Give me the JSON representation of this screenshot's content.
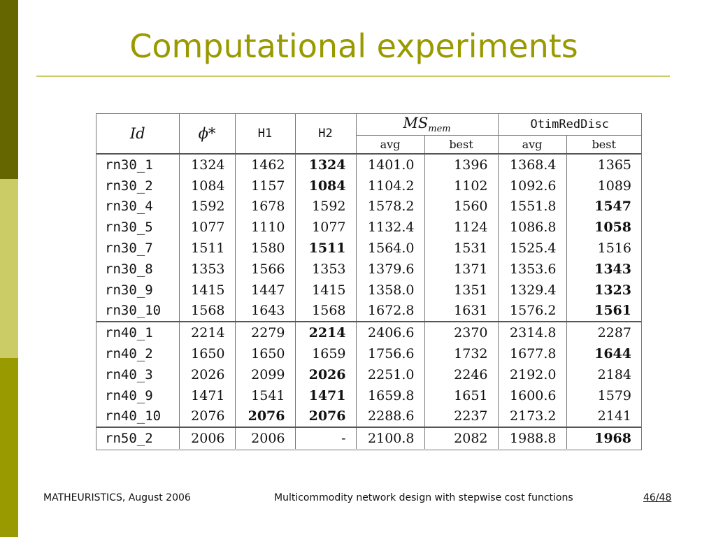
{
  "slide": {
    "title": "Computational experiments"
  },
  "table": {
    "headers": {
      "id": "Id",
      "phi": "ϕ*",
      "h1": "H1",
      "h2": "H2",
      "ms_main": "MS",
      "ms_sub": "mem",
      "otim": "OtimRedDisc",
      "avg": "avg",
      "best": "best"
    },
    "groups": [
      {
        "rows": [
          {
            "id": "rn30_1",
            "phi": "1324",
            "h1": "1462",
            "h2": "1324",
            "ms_avg": "1401.0",
            "ms_best": "1396",
            "ot_avg": "1368.4",
            "ot_best": "1365",
            "bold": [
              "h2"
            ]
          },
          {
            "id": "rn30_2",
            "phi": "1084",
            "h1": "1157",
            "h2": "1084",
            "ms_avg": "1104.2",
            "ms_best": "1102",
            "ot_avg": "1092.6",
            "ot_best": "1089",
            "bold": [
              "h2"
            ]
          },
          {
            "id": "rn30_4",
            "phi": "1592",
            "h1": "1678",
            "h2": "1592",
            "ms_avg": "1578.2",
            "ms_best": "1560",
            "ot_avg": "1551.8",
            "ot_best": "1547",
            "bold": [
              "ot_best"
            ]
          },
          {
            "id": "rn30_5",
            "phi": "1077",
            "h1": "1110",
            "h2": "1077",
            "ms_avg": "1132.4",
            "ms_best": "1124",
            "ot_avg": "1086.8",
            "ot_best": "1058",
            "bold": [
              "ot_best"
            ]
          },
          {
            "id": "rn30_7",
            "phi": "1511",
            "h1": "1580",
            "h2": "1511",
            "ms_avg": "1564.0",
            "ms_best": "1531",
            "ot_avg": "1525.4",
            "ot_best": "1516",
            "bold": [
              "h2"
            ]
          },
          {
            "id": "rn30_8",
            "phi": "1353",
            "h1": "1566",
            "h2": "1353",
            "ms_avg": "1379.6",
            "ms_best": "1371",
            "ot_avg": "1353.6",
            "ot_best": "1343",
            "bold": [
              "ot_best"
            ]
          },
          {
            "id": "rn30_9",
            "phi": "1415",
            "h1": "1447",
            "h2": "1415",
            "ms_avg": "1358.0",
            "ms_best": "1351",
            "ot_avg": "1329.4",
            "ot_best": "1323",
            "bold": [
              "ot_best"
            ]
          },
          {
            "id": "rn30_10",
            "phi": "1568",
            "h1": "1643",
            "h2": "1568",
            "ms_avg": "1672.8",
            "ms_best": "1631",
            "ot_avg": "1576.2",
            "ot_best": "1561",
            "bold": [
              "ot_best"
            ]
          }
        ]
      },
      {
        "rows": [
          {
            "id": "rn40_1",
            "phi": "2214",
            "h1": "2279",
            "h2": "2214",
            "ms_avg": "2406.6",
            "ms_best": "2370",
            "ot_avg": "2314.8",
            "ot_best": "2287",
            "bold": [
              "h2"
            ]
          },
          {
            "id": "rn40_2",
            "phi": "1650",
            "h1": "1650",
            "h2": "1659",
            "ms_avg": "1756.6",
            "ms_best": "1732",
            "ot_avg": "1677.8",
            "ot_best": "1644",
            "bold": [
              "ot_best"
            ]
          },
          {
            "id": "rn40_3",
            "phi": "2026",
            "h1": "2099",
            "h2": "2026",
            "ms_avg": "2251.0",
            "ms_best": "2246",
            "ot_avg": "2192.0",
            "ot_best": "2184",
            "bold": [
              "h2"
            ]
          },
          {
            "id": "rn40_9",
            "phi": "1471",
            "h1": "1541",
            "h2": "1471",
            "ms_avg": "1659.8",
            "ms_best": "1651",
            "ot_avg": "1600.6",
            "ot_best": "1579",
            "bold": [
              "h2"
            ]
          },
          {
            "id": "rn40_10",
            "phi": "2076",
            "h1": "2076",
            "h2": "2076",
            "ms_avg": "2288.6",
            "ms_best": "2237",
            "ot_avg": "2173.2",
            "ot_best": "2141",
            "bold": [
              "h1",
              "h2"
            ]
          }
        ]
      },
      {
        "rows": [
          {
            "id": "rn50_2",
            "phi": "2006",
            "h1": "2006",
            "h2": "-",
            "ms_avg": "2100.8",
            "ms_best": "2082",
            "ot_avg": "1988.8",
            "ot_best": "1968",
            "bold": [
              "ot_best"
            ]
          }
        ]
      }
    ]
  },
  "footer": {
    "left": "MATHEURISTICS, August 2006",
    "center": "Multicommodity network design with stepwise cost functions",
    "page": "46/48"
  },
  "colors": {
    "accent": "#999900",
    "sidebar_dark": "#666600",
    "sidebar_light": "#cccc66"
  }
}
